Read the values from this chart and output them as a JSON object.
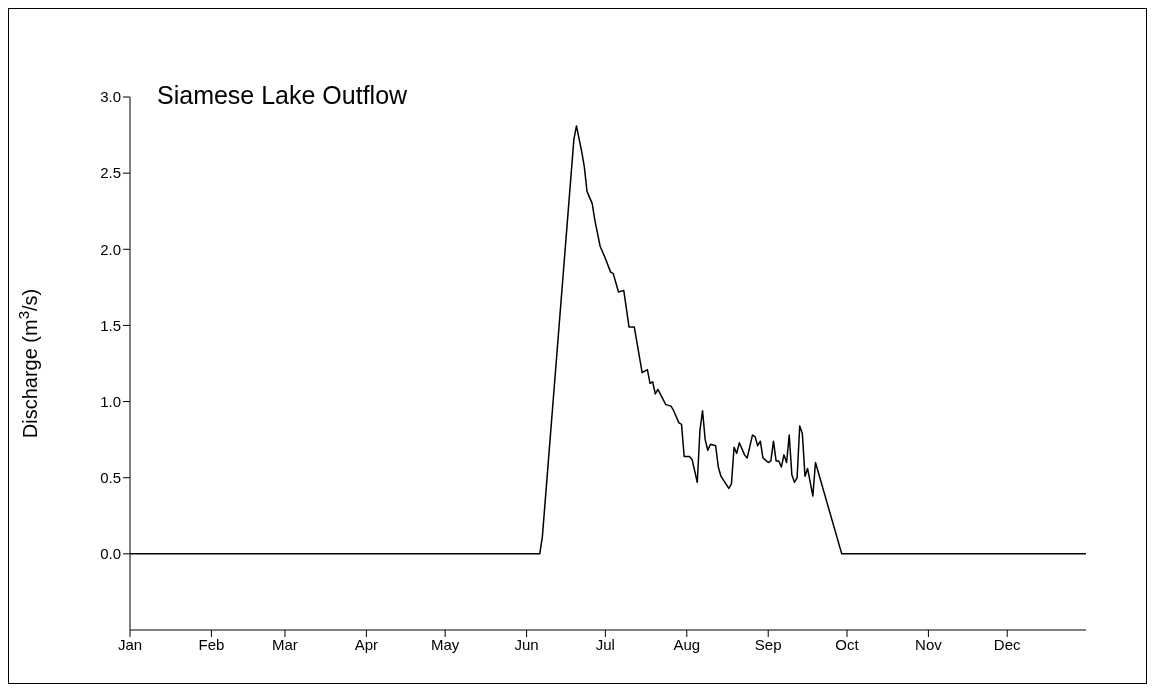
{
  "chart_data": {
    "type": "line",
    "title": "Siamese Lake Outflow",
    "ylabel": "Discharge (m$^{3}$/s)",
    "x": [
      "--01-01",
      "--06-06",
      "--06-07",
      "--06-19",
      "--06-20",
      "--06-22",
      "--06-23",
      "--06-24",
      "--06-26",
      "--06-27",
      "--06-29",
      "--07-01",
      "--07-03",
      "--07-04",
      "--07-06",
      "--07-08",
      "--07-10",
      "--07-12",
      "--07-15",
      "--07-17",
      "--07-18",
      "--07-19",
      "--07-20",
      "--07-21",
      "--07-24",
      "--07-26",
      "--07-27",
      "--07-29",
      "--07-30",
      "--07-31",
      "--08-02",
      "--08-03",
      "--08-05",
      "--08-06",
      "--08-07",
      "--08-08",
      "--08-09",
      "--08-10",
      "--08-12",
      "--08-13",
      "--08-14",
      "--08-17",
      "--08-18",
      "--08-19",
      "--08-20",
      "--08-21",
      "--08-23",
      "--08-24",
      "--08-26",
      "--08-27",
      "--08-28",
      "--08-29",
      "--08-30",
      "--09-01",
      "--09-02",
      "--09-03",
      "--09-04",
      "--09-05",
      "--09-06",
      "--09-07",
      "--09-08",
      "--09-09",
      "--09-10",
      "--09-11",
      "--09-12",
      "--09-13",
      "--09-14",
      "--09-15",
      "--09-16",
      "--09-18",
      "--09-19",
      "--09-29",
      "--12-31"
    ],
    "series": [
      {
        "color": "#000000",
        "values": [
          0,
          0,
          0.11,
          2.72,
          2.81,
          2.64,
          2.54,
          2.38,
          2.3,
          2.19,
          2.02,
          1.94,
          1.85,
          1.84,
          1.72,
          1.73,
          1.49,
          1.49,
          1.19,
          1.21,
          1.12,
          1.13,
          1.05,
          1.08,
          0.98,
          0.97,
          0.94,
          0.86,
          0.85,
          0.64,
          0.64,
          0.62,
          0.47,
          0.81,
          0.94,
          0.75,
          0.68,
          0.72,
          0.71,
          0.57,
          0.51,
          0.43,
          0.46,
          0.7,
          0.66,
          0.73,
          0.65,
          0.63,
          0.78,
          0.77,
          0.71,
          0.74,
          0.63,
          0.6,
          0.61,
          0.74,
          0.61,
          0.61,
          0.57,
          0.65,
          0.6,
          0.78,
          0.52,
          0.47,
          0.5,
          0.84,
          0.79,
          0.51,
          0.56,
          0.38,
          0.6,
          0,
          0
        ]
      }
    ],
    "xlim": [
      "--01-01",
      "--12-31"
    ],
    "xticks": [
      {
        "value": "--01-01",
        "label": "Jan"
      },
      {
        "value": "--02-01",
        "label": "Feb"
      },
      {
        "value": "--03-01",
        "label": "Mar"
      },
      {
        "value": "--04-01",
        "label": "Apr"
      },
      {
        "value": "--05-01",
        "label": "May"
      },
      {
        "value": "--06-01",
        "label": "Jun"
      },
      {
        "value": "--07-01",
        "label": "Jul"
      },
      {
        "value": "--08-01",
        "label": "Aug"
      },
      {
        "value": "--09-01",
        "label": "Sep"
      },
      {
        "value": "--10-01",
        "label": "Oct"
      },
      {
        "value": "--11-01",
        "label": "Nov"
      },
      {
        "value": "--12-01",
        "label": "Dec"
      }
    ],
    "ylim": [
      -0.5,
      3.0
    ],
    "yticks": [
      {
        "value": 0,
        "label": "0.0"
      },
      {
        "value": 0.5,
        "label": "0.5"
      },
      {
        "value": 1,
        "label": "1.0"
      },
      {
        "value": 1.5,
        "label": "1.5"
      },
      {
        "value": 2,
        "label": "2.0"
      },
      {
        "value": 2.5,
        "label": "2.5"
      },
      {
        "value": 3,
        "label": "3.0"
      }
    ],
    "grid": false,
    "legend": false,
    "marker": "none",
    "line_style": "solid"
  }
}
